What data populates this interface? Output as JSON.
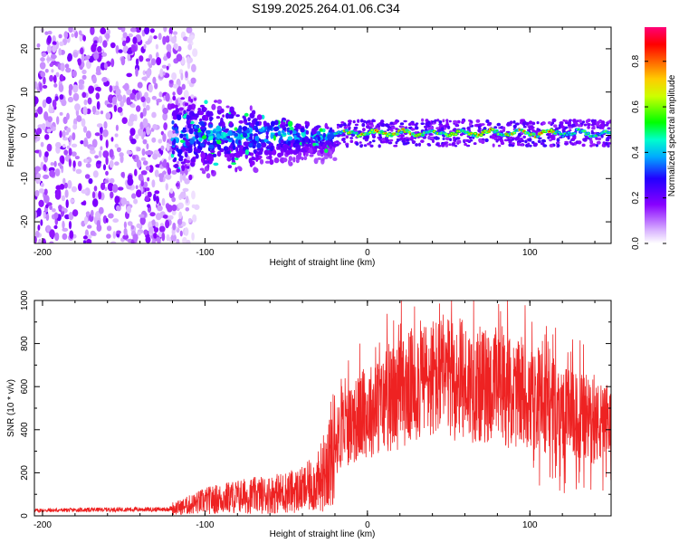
{
  "title": "S199.2025.264.01.06.C34",
  "chart_data": [
    {
      "type": "heatmap",
      "name": "spectrogram",
      "xlabel": "Height of straight line (km)",
      "ylabel": "Frequency (Hz)",
      "xlim": [
        -205,
        150
      ],
      "ylim": [
        -25,
        25
      ],
      "xticks": [
        -200,
        -100,
        0,
        100
      ],
      "yticks": [
        20,
        10,
        0,
        -10,
        -20
      ],
      "colorbar": {
        "label": "Normalized spectral amplitude",
        "range": [
          0,
          0.95
        ],
        "ticks": [
          0.0,
          0.2,
          0.4,
          0.6,
          0.8
        ],
        "colors": [
          "#ffffff",
          "#cc99ff",
          "#8800ff",
          "#3300ff",
          "#00ccff",
          "#00ff66",
          "#ffff00",
          "#ff8800",
          "#ff0000",
          "#ff0066"
        ]
      },
      "features": {
        "broadband_noise_x": [
          -205,
          -120
        ],
        "transition_x": [
          -120,
          -20
        ],
        "narrow_line_x": [
          -20,
          150
        ],
        "line_frequency_hz": 0.5,
        "peak_amplitude": 0.95
      }
    },
    {
      "type": "line",
      "name": "snr",
      "xlabel": "Height of straight line (km)",
      "ylabel": "SNR (10 * v/v)",
      "xlim": [
        -205,
        150
      ],
      "ylim": [
        0,
        1000
      ],
      "xticks": [
        -200,
        -100,
        0,
        100
      ],
      "yticks": [
        0,
        200,
        400,
        600,
        800,
        1000
      ],
      "color": "#ee2222",
      "envelope": {
        "x": [
          -205,
          -150,
          -125,
          -115,
          -100,
          -80,
          -60,
          -40,
          -30,
          -25,
          -20,
          -15,
          -10,
          0,
          10,
          20,
          30,
          40,
          60,
          80,
          100,
          120,
          140,
          150
        ],
        "y": [
          25,
          30,
          30,
          40,
          70,
          90,
          100,
          120,
          160,
          240,
          330,
          400,
          430,
          480,
          520,
          560,
          620,
          640,
          620,
          590,
          540,
          480,
          430,
          420
        ]
      }
    }
  ]
}
